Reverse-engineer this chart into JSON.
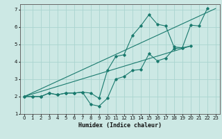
{
  "title": "",
  "xlabel": "Humidex (Indice chaleur)",
  "ylabel": "",
  "background_color": "#cce8e4",
  "grid_color": "#aad4cf",
  "line_color": "#1a7a6e",
  "xlim": [
    -0.5,
    23.5
  ],
  "ylim": [
    1,
    7.3
  ],
  "yticks": [
    1,
    2,
    3,
    4,
    5,
    6,
    7
  ],
  "xticks": [
    0,
    1,
    2,
    3,
    4,
    5,
    6,
    7,
    8,
    9,
    10,
    11,
    12,
    13,
    14,
    15,
    16,
    17,
    18,
    19,
    20,
    21,
    22,
    23
  ],
  "series": [
    {
      "x": [
        0,
        1,
        2,
        3,
        4,
        5,
        6,
        7,
        8,
        9,
        10,
        11,
        12,
        13,
        14,
        15,
        16,
        17,
        18,
        19,
        20,
        21,
        22
      ],
      "y": [
        2.0,
        2.0,
        2.0,
        2.2,
        2.1,
        2.2,
        2.2,
        2.25,
        2.2,
        1.9,
        3.5,
        4.3,
        4.4,
        5.5,
        6.05,
        6.7,
        6.15,
        6.05,
        4.85,
        4.8,
        6.1,
        6.05,
        7.05
      ]
    },
    {
      "x": [
        0,
        1,
        2,
        3,
        4,
        5,
        6,
        7,
        8,
        9,
        10,
        11,
        12,
        13,
        14,
        15,
        16,
        17,
        18,
        19,
        20
      ],
      "y": [
        2.0,
        2.0,
        2.0,
        2.2,
        2.1,
        2.2,
        2.2,
        2.25,
        1.55,
        1.45,
        1.9,
        3.0,
        3.15,
        3.5,
        3.55,
        4.45,
        4.05,
        4.2,
        4.75,
        4.8,
        4.9
      ]
    },
    {
      "x": [
        0,
        23
      ],
      "y": [
        2.0,
        7.05
      ]
    },
    {
      "x": [
        0,
        20
      ],
      "y": [
        2.0,
        4.9
      ]
    }
  ]
}
